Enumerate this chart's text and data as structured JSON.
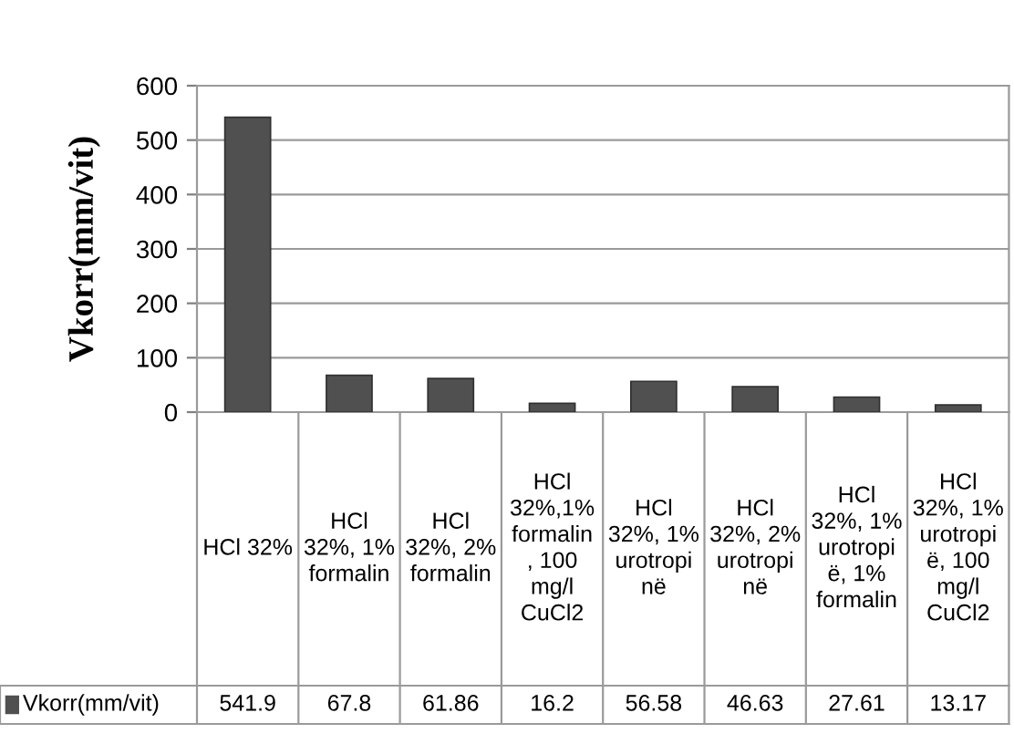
{
  "chart_data": {
    "type": "bar",
    "ylabel": "Vkorr(mm/vit)",
    "categories": [
      "HCl 32%",
      "HCl\n32%, 1%\nformalin",
      "HCl\n32%, 2%\nformalin",
      "HCl\n32%,1%\nformalin\n, 100\nmg/l\nCuCl2",
      "HCl\n32%, 1%\nurotropi\nnë",
      "HCl\n32%, 2%\nurotropi\nnë",
      "HCl\n32%, 1%\nurotropi\në, 1%\nformalin",
      "HCl\n32%, 1%\nurotropi\në, 100\nmg/l\nCuCl2"
    ],
    "series": [
      {
        "name": "Vkorr(mm/vit)",
        "color": "#505050",
        "values": [
          541.9,
          67.8,
          61.86,
          16.2,
          56.58,
          46.63,
          27.61,
          13.17
        ]
      }
    ],
    "ylim": [
      0,
      600
    ],
    "yticks": [
      0,
      100,
      200,
      300,
      400,
      500,
      600
    ],
    "grid": "y",
    "data_labels": true
  }
}
